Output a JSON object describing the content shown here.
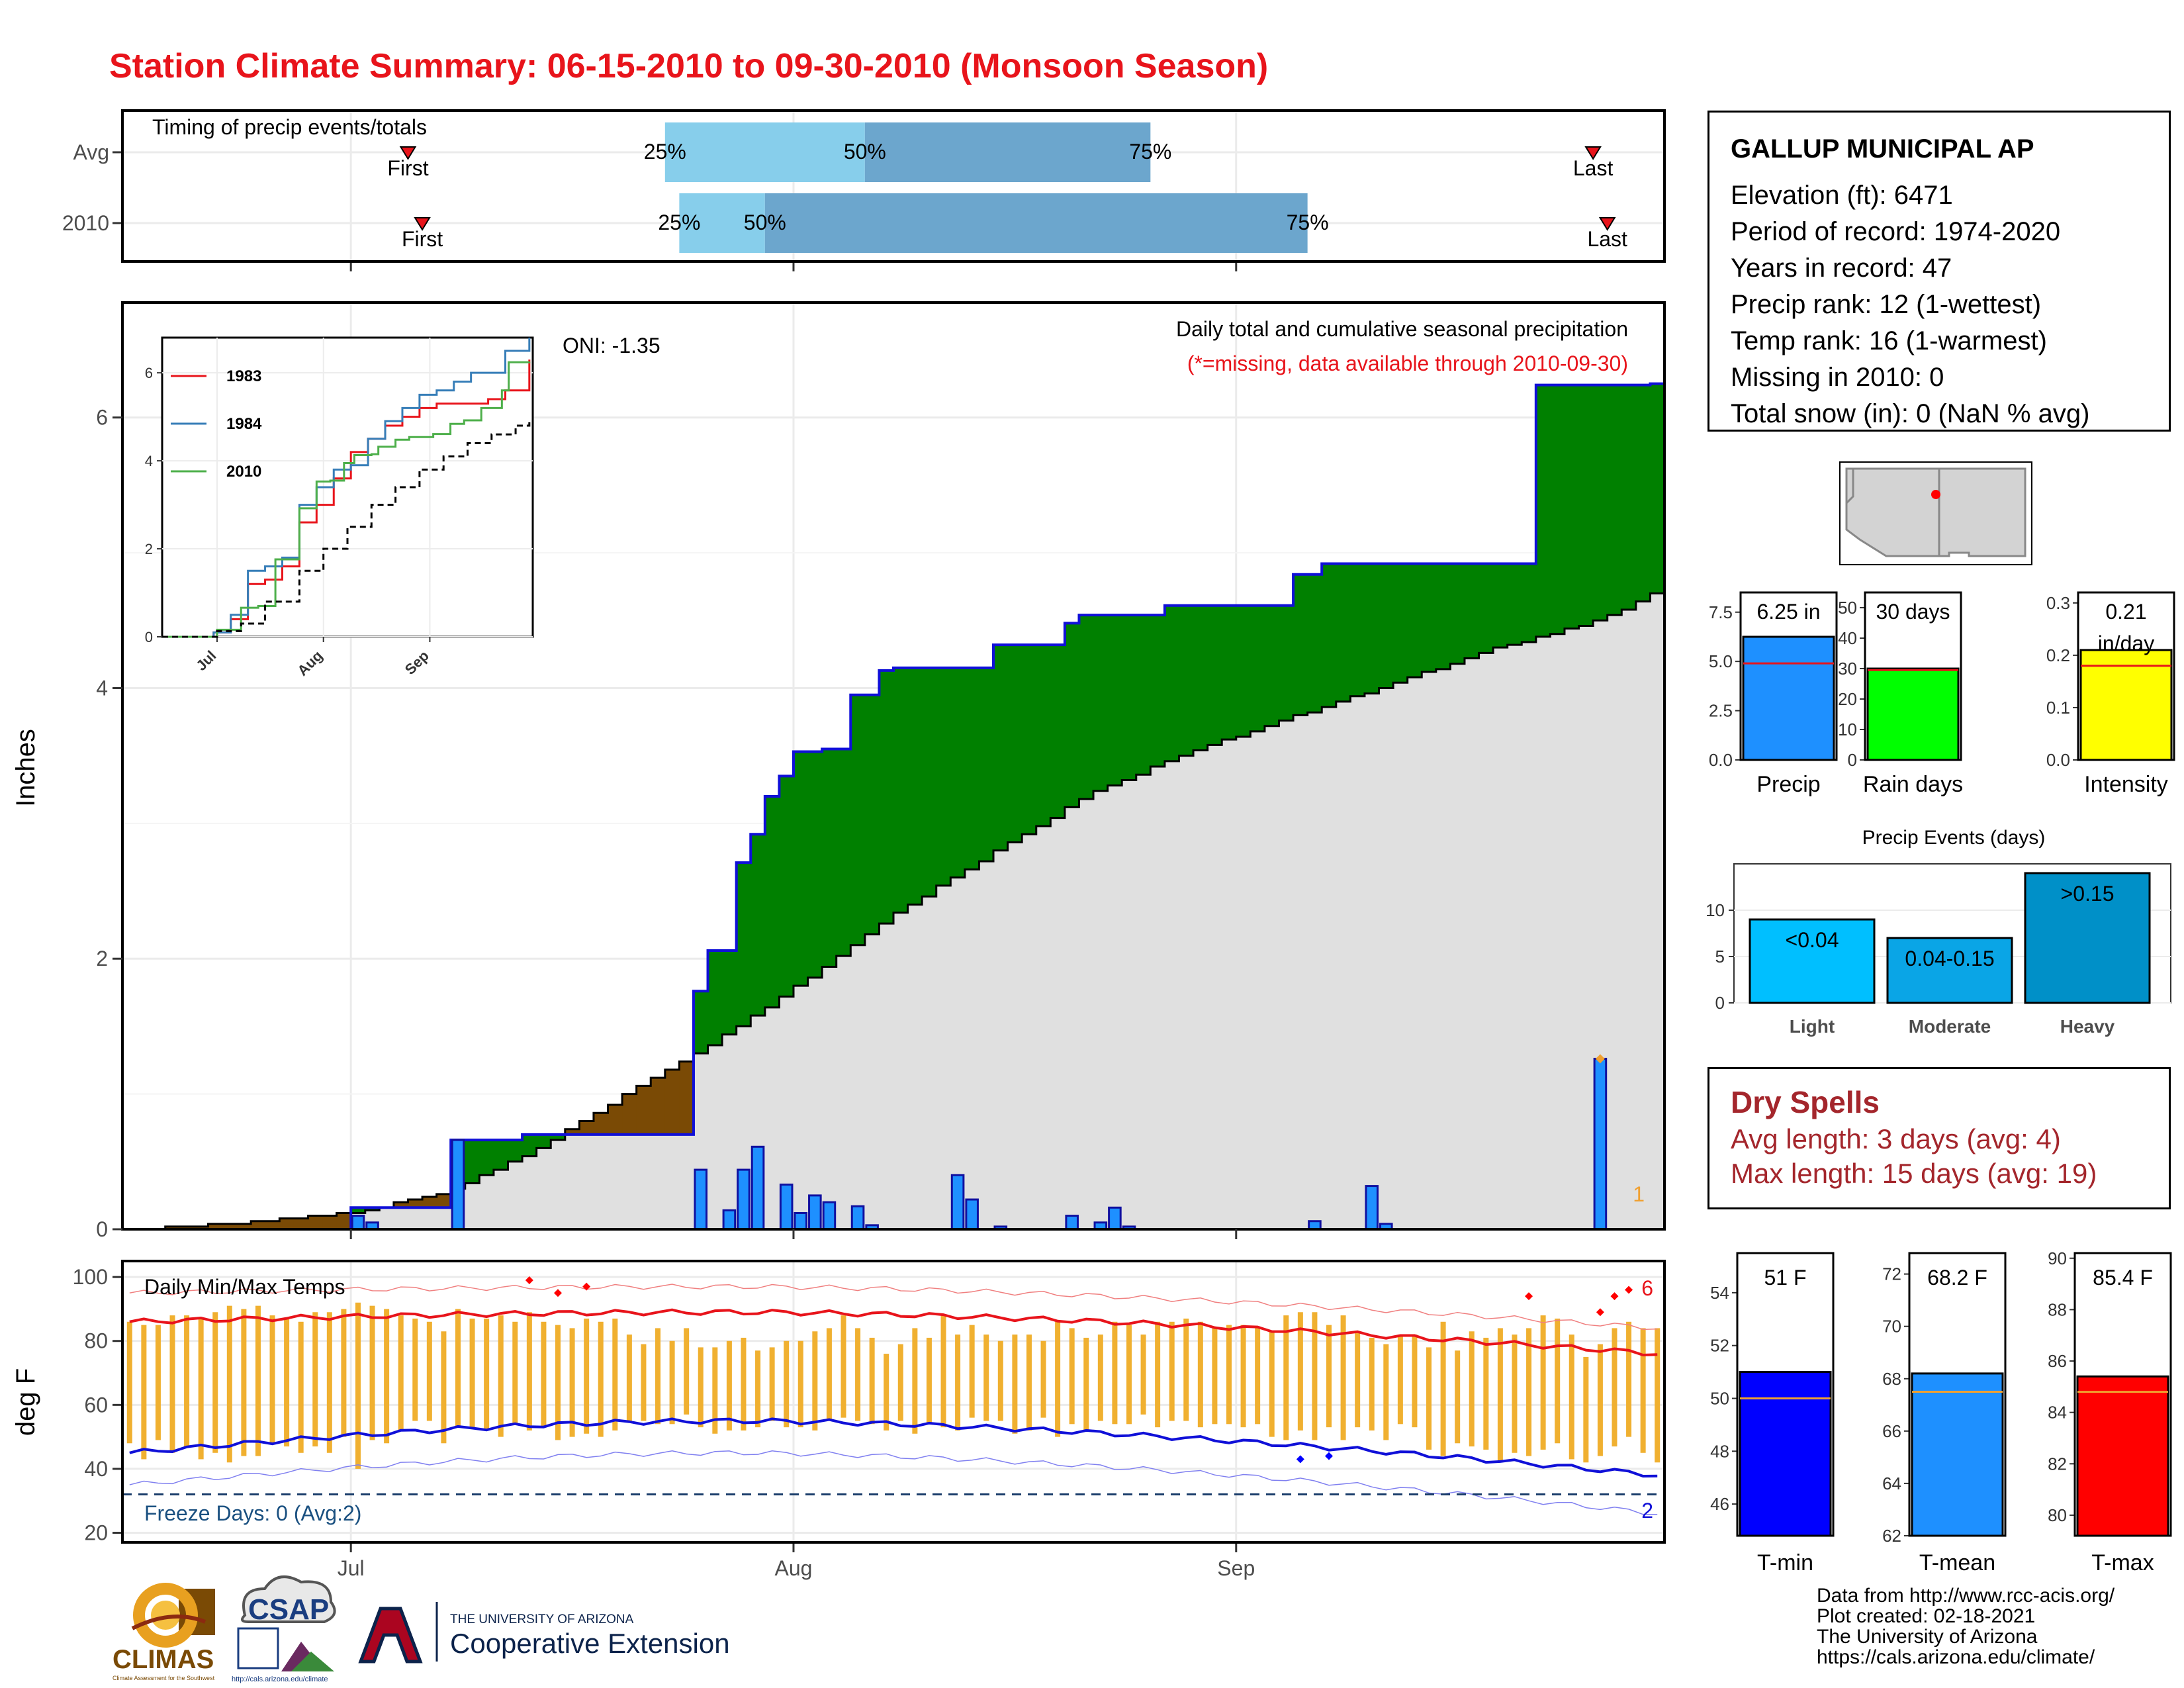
{
  "title": "Station Climate Summary: 06-15-2010 to 09-30-2010 (Monsoon Season)",
  "colors": {
    "title": "#e8141b",
    "above_avg": "#008000",
    "below_avg": "#7a4a05",
    "avg_fill": "#e0e0e0",
    "cum_line": "#1010d8",
    "daily_bar": "#1e90ff",
    "temp_bar": "#f0b030",
    "tmax_line": "#e8141b",
    "tmin_line": "#1010d8",
    "timing_light": "#87ceeb",
    "timing_dark": "#6ca6cd"
  },
  "timing_chart": {
    "title": "Timing of precip events/totals",
    "rows": [
      {
        "label": "Avg",
        "first_date": "2010-07-05",
        "last_date": "2010-09-26",
        "p25_date": "2010-07-23",
        "p50_date": "2010-08-06",
        "p75_date": "2010-08-26",
        "first_label": "First",
        "last_label": "Last",
        "p25_label": "25%",
        "p50_label": "50%",
        "p75_label": "75%"
      },
      {
        "label": "2010",
        "first_date": "2010-07-06",
        "last_date": "2010-09-27",
        "p25_date": "2010-07-24",
        "p50_date": "2010-07-30",
        "p75_date": "2010-09-06",
        "first_label": "First",
        "last_label": "Last",
        "p25_label": "25%",
        "p50_label": "50%",
        "p75_label": "75%"
      }
    ]
  },
  "station": {
    "name": "GALLUP MUNICIPAL AP",
    "lines": [
      "Elevation (ft): 6471",
      "Period of record: 1974-2020",
      "Years in record: 47",
      "Precip rank: 12 (1-wettest)",
      "Temp rank: 16 (1-warmest)",
      "Missing in 2010: 0",
      "Total snow (in): 0 (NaN % avg)"
    ]
  },
  "main_chart": {
    "ylabel": "Inches",
    "annotation_title": "Daily total and cumulative seasonal precipitation",
    "annotation_missing": "(*=missing, data available through 2010-09-30)",
    "oni_label": "ONI: -1.35",
    "missing_count_label": "1",
    "x_ticks": [
      "Jul",
      "Aug",
      "Sep"
    ],
    "y_ticks": [
      "0",
      "2",
      "4",
      "6"
    ],
    "ylim": [
      0,
      6.85
    ]
  },
  "inset_chart": {
    "x_ticks": [
      "Jul",
      "Aug",
      "Sep"
    ],
    "y_ticks": [
      "0",
      "2",
      "4",
      "6"
    ],
    "legend": [
      "1983",
      "1984",
      "2010"
    ]
  },
  "summary_bars": [
    {
      "label": "Precip",
      "value": 6.25,
      "avg": 4.9,
      "value_label": "6.25 in",
      "ticks": [
        "0.0",
        "2.5",
        "5.0",
        "7.5"
      ],
      "ymax": 8.5,
      "color": "#1e90ff"
    },
    {
      "label": "Rain days",
      "value": 30,
      "avg": 29.5,
      "value_label": "30 days",
      "ticks": [
        "0",
        "10",
        "20",
        "30",
        "40",
        "50"
      ],
      "ymax": 55,
      "color": "#00ff00"
    },
    {
      "label": "Intensity",
      "value": 0.21,
      "avg": 0.18,
      "value_label": "0.21 in/day",
      "ticks": [
        "0.0",
        "0.1",
        "0.2",
        "0.3"
      ],
      "ymax": 0.32,
      "color": "#ffff00"
    }
  ],
  "precip_events": {
    "title": "Precip Events (days)",
    "ticks": [
      "0",
      "5",
      "10"
    ],
    "bars": [
      {
        "category": "Light",
        "value": 9,
        "label": "<0.04",
        "color": "#00bfff"
      },
      {
        "category": "Moderate",
        "value": 7,
        "label": "0.04-0.15",
        "color": "#0aa5e6"
      },
      {
        "category": "Heavy",
        "value": 14,
        "label": ">0.15",
        "color": "#0090c8"
      }
    ]
  },
  "dry_spells": {
    "title": "Dry Spells",
    "avg_length": "Avg length: 3 days (avg: 4)",
    "max_length": "Max length: 15 days (avg: 19)"
  },
  "temp_chart": {
    "title": "Daily Min/Max Temps",
    "ylabel": "deg F",
    "freeze_label": "Freeze Days: 0 (Avg:2)",
    "record_high_count": "6",
    "record_low_count": "2",
    "y_ticks": [
      "20",
      "40",
      "60",
      "80",
      "100"
    ],
    "x_ticks": [
      "Jul",
      "Aug",
      "Sep"
    ]
  },
  "temp_summary": [
    {
      "label": "T-min",
      "value": 51,
      "avg": 50,
      "value_label": "51 F",
      "ticks": [
        "46",
        "48",
        "50",
        "52",
        "54"
      ],
      "ymin": 44.8,
      "ymax": 55.5,
      "color": "#0000ff"
    },
    {
      "label": "T-mean",
      "value": 68.2,
      "avg": 67.5,
      "value_label": "68.2 F",
      "ticks": [
        "62",
        "64",
        "66",
        "68",
        "70",
        "72"
      ],
      "ymin": 62,
      "ymax": 72.8,
      "color": "#1e90ff"
    },
    {
      "label": "T-max",
      "value": 85.4,
      "avg": 84.8,
      "value_label": "85.4 F",
      "ticks": [
        "80",
        "82",
        "84",
        "86",
        "88",
        "90"
      ],
      "ymin": 79.2,
      "ymax": 90.2,
      "color": "#ff0000"
    }
  ],
  "credits": [
    "Data from http://www.rcc-acis.org/",
    "Plot created: 02-18-2021",
    "The University of Arizona",
    "https://cals.arizona.edu/climate/"
  ],
  "logos": {
    "climas": "CLIMAS",
    "climas_sub": "Climate Assessment for the Southwest",
    "csap": "CSAP",
    "csap_url": "http://cals.arizona.edu/climate",
    "ua_line1": "THE UNIVERSITY OF ARIZONA",
    "ua_line2": "Cooperative Extension"
  },
  "chart_data": [
    {
      "type": "area",
      "title": "Daily total and cumulative seasonal precipitation",
      "ylabel": "Inches",
      "x_start": "2010-06-15",
      "x_end": "2010-09-30",
      "ylim": [
        0,
        6.85
      ],
      "series": [
        {
          "name": "",
          "kind": "cumulative 2010",
          "x": [
            "2010-06-15",
            "2010-07-01",
            "2010-07-08",
            "2010-07-13",
            "2010-07-25",
            "2010-07-26",
            "2010-07-28",
            "2010-07-29",
            "2010-07-30",
            "2010-07-31",
            "2010-08-01",
            "2010-08-02",
            "2010-08-03",
            "2010-08-05",
            "2010-08-07",
            "2010-08-08",
            "2010-08-15",
            "2010-08-20",
            "2010-08-21",
            "2010-08-27",
            "2010-09-05",
            "2010-09-07",
            "2010-09-22",
            "2010-09-30"
          ],
          "values": [
            0,
            0.16,
            0.66,
            0.7,
            1.76,
            2.06,
            2.71,
            2.92,
            3.2,
            3.35,
            3.53,
            3.53,
            3.55,
            3.95,
            4.13,
            4.15,
            4.32,
            4.48,
            4.54,
            4.61,
            4.84,
            4.92,
            6.24,
            6.25
          ]
        },
        {
          "name": "",
          "kind": "cumulative average",
          "x": [
            "2010-06-15",
            "2010-06-22",
            "2010-07-01",
            "2010-07-08",
            "2010-07-13",
            "2010-07-20",
            "2010-07-25",
            "2010-08-01",
            "2010-08-08",
            "2010-08-15",
            "2010-08-22",
            "2010-08-29",
            "2010-09-05",
            "2010-09-12",
            "2010-09-19",
            "2010-09-26",
            "2010-09-30"
          ],
          "values": [
            0,
            0.05,
            0.13,
            0.3,
            0.55,
            1.0,
            1.3,
            1.8,
            2.35,
            2.8,
            3.25,
            3.55,
            3.8,
            4.05,
            4.3,
            4.5,
            4.7
          ]
        },
        {
          "name": "",
          "kind": "daily precipitation",
          "x": [
            "2010-07-01",
            "2010-07-02",
            "2010-07-08",
            "2010-07-25",
            "2010-07-27",
            "2010-07-28",
            "2010-07-29",
            "2010-07-31",
            "2010-08-01",
            "2010-08-02",
            "2010-08-03",
            "2010-08-05",
            "2010-08-06",
            "2010-08-12",
            "2010-08-13",
            "2010-08-15",
            "2010-08-20",
            "2010-08-22",
            "2010-08-23",
            "2010-08-24",
            "2010-09-06",
            "2010-09-10",
            "2010-09-11",
            "2010-09-26"
          ],
          "values": [
            0.1,
            0.05,
            0.66,
            0.44,
            0.14,
            0.44,
            0.61,
            0.33,
            0.12,
            0.25,
            0.2,
            0.17,
            0.03,
            0.4,
            0.22,
            0.02,
            0.1,
            0.05,
            0.16,
            0.02,
            0.06,
            0.32,
            0.04,
            1.26
          ]
        }
      ]
    },
    {
      "type": "line",
      "title": "",
      "x_ticks": [
        "Jul",
        "Aug",
        "Sep"
      ],
      "ylim": [
        0,
        6.8
      ],
      "series": [
        {
          "name": "1983",
          "values_day": [
            0,
            15,
            20,
            25,
            30,
            35,
            40,
            45,
            50,
            55,
            60,
            65,
            70,
            75,
            80,
            85,
            90,
            95,
            100,
            107
          ],
          "values": [
            0,
            0.1,
            0.4,
            1.2,
            1.3,
            1.6,
            2.6,
            3.0,
            3.6,
            4.2,
            4.5,
            4.8,
            5.0,
            5.2,
            5.3,
            5.3,
            5.3,
            5.4,
            5.6,
            6.3
          ]
        },
        {
          "name": "1984",
          "values_day": [
            0,
            15,
            20,
            25,
            30,
            35,
            40,
            45,
            50,
            55,
            60,
            65,
            70,
            75,
            80,
            85,
            90,
            95,
            100,
            107
          ],
          "values": [
            0,
            0.1,
            0.5,
            1.5,
            1.6,
            1.8,
            3.0,
            3.4,
            3.8,
            3.9,
            4.5,
            4.9,
            5.2,
            5.5,
            5.6,
            5.8,
            6.0,
            6.0,
            6.5,
            6.8
          ]
        },
        {
          "name": "2010",
          "values_day": [
            0,
            16,
            23,
            28,
            33,
            40,
            45,
            49,
            53,
            56,
            61,
            63,
            68,
            72,
            79,
            84,
            88,
            93,
            99,
            101,
            107
          ],
          "values": [
            0,
            0.16,
            0.66,
            0.7,
            1.76,
            2.92,
            3.53,
            3.55,
            3.95,
            4.13,
            4.15,
            4.32,
            4.48,
            4.54,
            4.61,
            4.84,
            4.92,
            5.2,
            5.6,
            6.24,
            6.25
          ]
        },
        {
          "name": "",
          "kind": "average",
          "values_day": [
            0,
            16,
            23,
            30,
            40,
            47,
            54,
            61,
            68,
            75,
            82,
            89,
            96,
            103,
            107
          ],
          "values": [
            0,
            0.13,
            0.3,
            0.8,
            1.5,
            2.0,
            2.5,
            3.0,
            3.4,
            3.8,
            4.1,
            4.4,
            4.6,
            4.8,
            4.9
          ]
        }
      ]
    },
    {
      "type": "bar",
      "title": "Daily Min/Max Temps",
      "ylabel": "deg F",
      "ylim": [
        17,
        105
      ],
      "x_start": "2010-06-15",
      "x_end": "2010-09-30",
      "tmax_daily": [
        86,
        85,
        85,
        88,
        88,
        87,
        89,
        91,
        90,
        91,
        88,
        87,
        86,
        89,
        89,
        90,
        92,
        91,
        90,
        88,
        87,
        86,
        83,
        90,
        87,
        87,
        88,
        86,
        89,
        86,
        85,
        84,
        87,
        86,
        87,
        82,
        79,
        84,
        80,
        84,
        78,
        78,
        80,
        81,
        77,
        78,
        80,
        80,
        83,
        84,
        88,
        84,
        81,
        76,
        79,
        84,
        81,
        88,
        82,
        85,
        82,
        80,
        82,
        82,
        80,
        86,
        84,
        81,
        82,
        86,
        85,
        82,
        86,
        86,
        87,
        86,
        84,
        85,
        85,
        84,
        83,
        88,
        89,
        89,
        85,
        88,
        83,
        81,
        79,
        82,
        82,
        78,
        86,
        77,
        83,
        81,
        84,
        82,
        84,
        88,
        87,
        82,
        75,
        79,
        84,
        86,
        84,
        84
      ],
      "tmin_daily": [
        48,
        43,
        49,
        45,
        47,
        43,
        45,
        42,
        44,
        44,
        48,
        47,
        45,
        47,
        45,
        50,
        40,
        49,
        48,
        52,
        55,
        55,
        48,
        53,
        53,
        52,
        50,
        54,
        52,
        53,
        49,
        50,
        51,
        50,
        52,
        55,
        55,
        54,
        54,
        57,
        53,
        51,
        52,
        52,
        53,
        55,
        53,
        53,
        52,
        55,
        56,
        55,
        54,
        52,
        55,
        51,
        54,
        53,
        52,
        56,
        55,
        55,
        51,
        52,
        56,
        50,
        54,
        52,
        55,
        54,
        54,
        57,
        53,
        55,
        55,
        53,
        54,
        54,
        53,
        54,
        50,
        49,
        52,
        49,
        53,
        49,
        53,
        52,
        49,
        54,
        53,
        46,
        44,
        48,
        47,
        46,
        42,
        45,
        44,
        46,
        48,
        43,
        42,
        44,
        47,
        50,
        45,
        42
      ],
      "avg_tmax_start": 86,
      "avg_tmax_mid": 89,
      "avg_tmax_end": 76,
      "avg_tmin_start": 45,
      "avg_tmin_mid": 55,
      "avg_tmin_end": 38,
      "freeze_line": 32
    }
  ]
}
